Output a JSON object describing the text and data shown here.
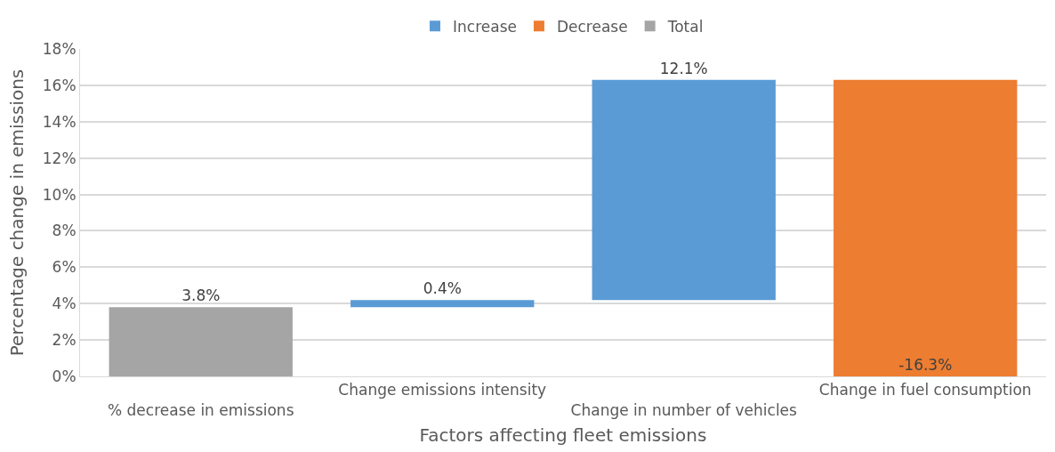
{
  "chart_data": {
    "type": "bar",
    "xlabel": "Factors affecting fleet emissions",
    "ylabel": "Percentage change in emissions",
    "categories": [
      "% decrease in emissions",
      "Change emissions intensity",
      "Change in number of vehicles",
      "Change in fuel consumption"
    ],
    "series": [
      {
        "name": "Increase",
        "color": "#5b9bd5",
        "values": [
          null,
          0.4,
          12.1,
          null
        ],
        "base": [
          null,
          3.8,
          4.2,
          null
        ],
        "value_labels": [
          null,
          "0.4%",
          "12.1%",
          null
        ]
      },
      {
        "name": "Decrease",
        "color": "#ed7d31",
        "values": [
          null,
          null,
          null,
          -16.3
        ],
        "base": [
          null,
          null,
          null,
          16.3
        ],
        "value_labels": [
          null,
          null,
          null,
          "-16.3%"
        ]
      },
      {
        "name": "Total",
        "color": "#a5a5a5",
        "values": [
          3.8,
          null,
          null,
          null
        ],
        "base": [
          0,
          null,
          null,
          null
        ],
        "value_labels": [
          "3.8%",
          null,
          null,
          null
        ]
      }
    ],
    "ylim": [
      0,
      18
    ],
    "yticks": [
      {
        "value": 0,
        "label": "0%"
      },
      {
        "value": 2,
        "label": "2%"
      },
      {
        "value": 4,
        "label": "4%"
      },
      {
        "value": 6,
        "label": "6%"
      },
      {
        "value": 8,
        "label": "8%"
      },
      {
        "value": 10,
        "label": "10%"
      },
      {
        "value": 12,
        "label": "12%"
      },
      {
        "value": 14,
        "label": "14%"
      },
      {
        "value": 16,
        "label": "16%"
      },
      {
        "value": 18,
        "label": "18%"
      }
    ],
    "grid": "y",
    "legend": "top"
  }
}
